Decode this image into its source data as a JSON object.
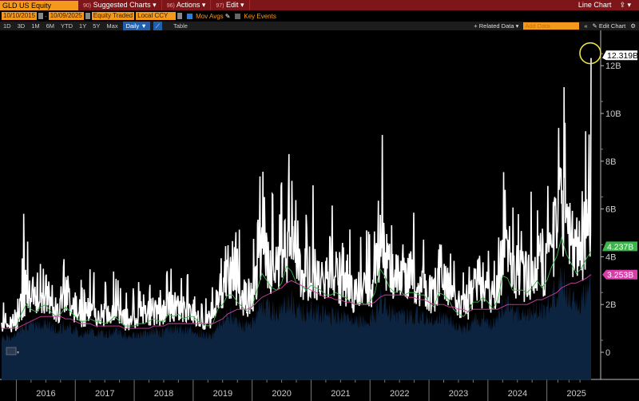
{
  "header": {
    "ticker": "GLD US Equity",
    "menus": [
      {
        "num": "90)",
        "label": "Suggested Charts ▾"
      },
      {
        "num": "96)",
        "label": "Actions ▾"
      },
      {
        "num": "97)",
        "label": "Edit ▾"
      }
    ],
    "chart_type": "Line Chart",
    "export_icon": "export-icon"
  },
  "controls": {
    "start_date": "10/10/2015",
    "end_date": "10/09/2025",
    "field": "Equity Traded",
    "currency": "Local CCY",
    "mov_avgs": "Mov Avgs",
    "mov_avgs_checked": true,
    "key_events": "Key Events",
    "key_events_checked": false
  },
  "periods": [
    "1D",
    "3D",
    "1M",
    "6M",
    "YTD",
    "1Y",
    "5Y",
    "Max"
  ],
  "frequency": "Daily ▼",
  "table_label": "Table",
  "toolbar": {
    "related": "+ Related Data ▾",
    "add_placeholder": "Add Data",
    "collapse": "«",
    "edit": "✎ Edit Chart",
    "gear": "⚙"
  },
  "colors": {
    "line": "#ffffff",
    "fill": "#0d2440",
    "ma_short": "#3bb54a",
    "ma_long": "#d63fa8",
    "header": "#7e1518",
    "accent": "#f39a1d",
    "highlight_circle": "#e6e04a"
  },
  "chart_data": {
    "type": "line",
    "x_start": "2015-10",
    "x_end": "2025-10",
    "frequency": "monthly",
    "ylim": [
      -1,
      13
    ],
    "yticks": [
      0,
      2,
      4,
      6,
      8,
      10,
      12
    ],
    "ytick_labels": [
      "0",
      "2B",
      "4B",
      "6B",
      "8B",
      "10B",
      "12B"
    ],
    "xtick_labels": [
      "2016",
      "2017",
      "2018",
      "2019",
      "2020",
      "2021",
      "2022",
      "2023",
      "2024",
      "2025"
    ],
    "series": [
      {
        "key": "value",
        "values": [
          1.0,
          1.1,
          1.2,
          1.5,
          5.8,
          2.5,
          2.0,
          2.0,
          3.5,
          2.5,
          1.5,
          1.5,
          2.5,
          3.2,
          1.8,
          1.5,
          1.3,
          1.5,
          1.8,
          1.3,
          1.5,
          1.2,
          1.8,
          2.2,
          1.2,
          1.0,
          1.3,
          1.2,
          1.5,
          1.3,
          1.5,
          1.8,
          1.3,
          1.5,
          3.5,
          1.5,
          2.2,
          1.3,
          1.8,
          1.7,
          1.2,
          1.3,
          1.0,
          1.5,
          3.3,
          2.5,
          3.5,
          2.6,
          2.0,
          1.8,
          1.6,
          2.4,
          5.4,
          6.5,
          3.0,
          3.0,
          3.2,
          4.0,
          8.3,
          4.2,
          3.0,
          3.3,
          2.5,
          3.5,
          2.8,
          3.0,
          2.3,
          2.6,
          2.8,
          2.3,
          2.5,
          2.0,
          2.0,
          2.5,
          2.0,
          2.3,
          3.2,
          9.1,
          3.5,
          2.5,
          2.5,
          2.8,
          2.3,
          2.8,
          2.6,
          2.5,
          2.5,
          2.0,
          2.0,
          4.5,
          2.8,
          2.4,
          1.8,
          1.5,
          1.6,
          2.0,
          3.5,
          2.6,
          3.0,
          2.2,
          1.8,
          3.5,
          6.8,
          3.8,
          2.5,
          3.0,
          2.9,
          2.5,
          3.6,
          4.5,
          2.5,
          4.5,
          6.3,
          6.8,
          11.1,
          5.0,
          4.3,
          3.6,
          5.5,
          7.3,
          12.319
        ]
      },
      {
        "key": "ma_short",
        "values": [
          1.0,
          1.0,
          1.0,
          1.1,
          1.6,
          2.0,
          1.8,
          1.7,
          1.9,
          2.0,
          1.7,
          1.5,
          1.6,
          1.9,
          1.7,
          1.5,
          1.3,
          1.3,
          1.4,
          1.3,
          1.3,
          1.2,
          1.3,
          1.5,
          1.3,
          1.1,
          1.1,
          1.1,
          1.2,
          1.2,
          1.3,
          1.4,
          1.3,
          1.3,
          1.6,
          1.5,
          1.6,
          1.4,
          1.5,
          1.5,
          1.3,
          1.2,
          1.1,
          1.2,
          1.8,
          2.0,
          2.4,
          2.4,
          2.1,
          1.9,
          1.7,
          1.9,
          2.6,
          3.3,
          3.0,
          2.7,
          2.6,
          2.9,
          3.6,
          3.4,
          2.9,
          2.8,
          2.6,
          2.8,
          2.7,
          2.6,
          2.4,
          2.4,
          2.5,
          2.4,
          2.3,
          2.1,
          2.0,
          2.1,
          2.0,
          2.1,
          2.5,
          3.5,
          3.2,
          2.7,
          2.5,
          2.6,
          2.4,
          2.5,
          2.5,
          2.4,
          2.4,
          2.1,
          1.9,
          2.5,
          2.4,
          2.2,
          1.8,
          1.6,
          1.5,
          1.7,
          2.1,
          2.1,
          2.3,
          2.1,
          1.8,
          2.2,
          3.2,
          3.1,
          2.6,
          2.6,
          2.6,
          2.5,
          2.7,
          3.0,
          2.7,
          3.0,
          3.6,
          4.0,
          4.8,
          4.1,
          3.7,
          3.3,
          3.5,
          3.9,
          4.237
        ]
      },
      {
        "key": "ma_long",
        "values": [
          1.0,
          1.0,
          1.0,
          1.0,
          1.1,
          1.2,
          1.3,
          1.4,
          1.5,
          1.5,
          1.5,
          1.5,
          1.5,
          1.4,
          1.4,
          1.3,
          1.2,
          1.2,
          1.2,
          1.1,
          1.1,
          1.1,
          1.1,
          1.1,
          1.1,
          1.0,
          1.0,
          1.0,
          1.0,
          1.0,
          1.0,
          1.1,
          1.1,
          1.1,
          1.2,
          1.2,
          1.2,
          1.2,
          1.2,
          1.2,
          1.2,
          1.2,
          1.2,
          1.2,
          1.3,
          1.4,
          1.6,
          1.7,
          1.8,
          1.8,
          1.8,
          1.9,
          2.1,
          2.3,
          2.4,
          2.5,
          2.6,
          2.7,
          2.9,
          3.0,
          2.9,
          2.8,
          2.7,
          2.6,
          2.5,
          2.4,
          2.3,
          2.3,
          2.2,
          2.2,
          2.1,
          2.1,
          2.0,
          2.0,
          2.0,
          2.0,
          2.1,
          2.3,
          2.4,
          2.4,
          2.4,
          2.4,
          2.4,
          2.3,
          2.3,
          2.2,
          2.2,
          2.1,
          2.0,
          2.0,
          2.0,
          1.9,
          1.9,
          1.8,
          1.8,
          1.7,
          1.8,
          1.8,
          1.8,
          1.8,
          1.8,
          1.8,
          1.9,
          2.0,
          2.0,
          2.0,
          2.0,
          2.0,
          2.1,
          2.2,
          2.2,
          2.3,
          2.4,
          2.5,
          2.7,
          2.8,
          2.9,
          2.9,
          3.0,
          3.1,
          3.253
        ]
      }
    ],
    "last_labels": {
      "value": "12.319B",
      "ma_short": "4.237B",
      "ma_long": "3.253B"
    }
  }
}
